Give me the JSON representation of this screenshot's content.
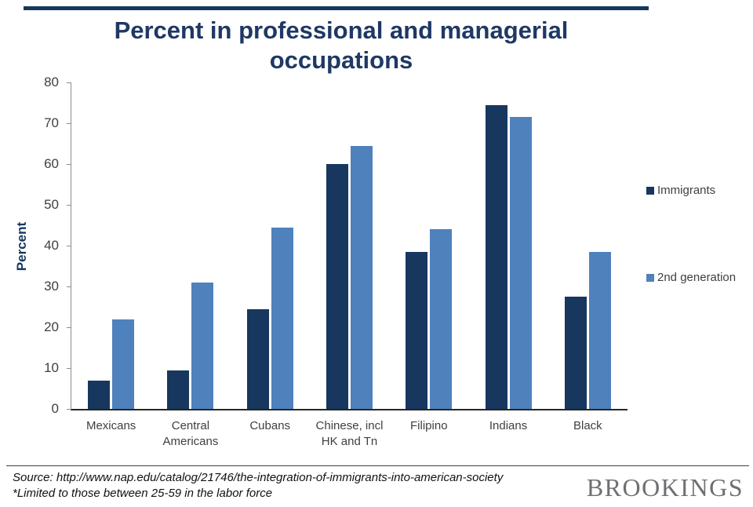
{
  "chart_data": {
    "type": "bar",
    "title": "Percent in professional and managerial occupations",
    "xlabel": "",
    "ylabel": "Percent",
    "ylim": [
      0,
      80
    ],
    "yticks": [
      0,
      10,
      20,
      30,
      40,
      50,
      60,
      70,
      80
    ],
    "grid": false,
    "legend_position": "right",
    "categories": [
      "Mexicans",
      "Central Americans",
      "Cubans",
      "Chinese, incl HK and Tn",
      "Filipino",
      "Indians",
      "Black"
    ],
    "series": [
      {
        "name": "Immigrants",
        "color": "#17375E",
        "values": [
          7,
          9.5,
          24.5,
          60,
          38.5,
          74.5,
          27.5
        ]
      },
      {
        "name": "2nd generation",
        "color": "#4F81BD",
        "values": [
          22,
          31,
          44.5,
          64.5,
          44,
          71.5,
          38.5
        ]
      }
    ]
  },
  "footer": {
    "source_line1": "Source: http://www.nap.edu/catalog/21746/the-integration-of-immigrants-into-american-society",
    "source_line2": "*Limited to those between 25-59 in the labor force",
    "logo": "BROOKINGS"
  },
  "colors": {
    "accent_navy": "#17375E",
    "accent_blue": "#4F81BD",
    "title_navy": "#1F3864",
    "logo_gray": "#6E6F72"
  }
}
